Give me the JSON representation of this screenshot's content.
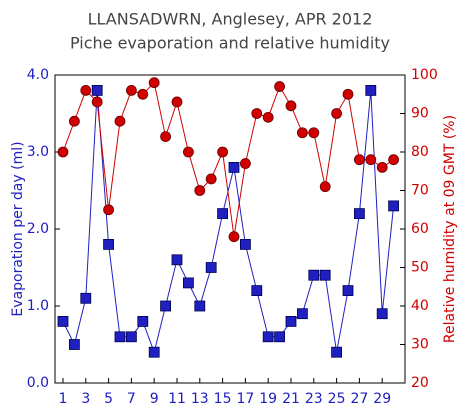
{
  "chart_data": {
    "type": "line",
    "title": "LLANSADWRN, Anglesey, APR 2012",
    "subtitle": "Piche evaporation and relative humidity",
    "ylabel": "Evaporation per day (ml)",
    "y2label": "Relative humidity at 09 GMT (%)",
    "x": [
      1,
      2,
      3,
      4,
      5,
      6,
      7,
      8,
      9,
      10,
      11,
      12,
      13,
      14,
      15,
      16,
      17,
      18,
      19,
      20,
      21,
      22,
      23,
      24,
      25,
      26,
      27,
      28,
      29,
      30
    ],
    "xlim": [
      0.3,
      31
    ],
    "xticks": [
      1,
      3,
      5,
      7,
      9,
      11,
      13,
      15,
      17,
      19,
      21,
      23,
      25,
      27,
      29
    ],
    "ylim": [
      0,
      4
    ],
    "yticks": [
      {
        "value": 0,
        "label": "0.0"
      },
      {
        "value": 1,
        "label": "1.0"
      },
      {
        "value": 2,
        "label": "2.0"
      },
      {
        "value": 3,
        "label": "3.0"
      },
      {
        "value": 4,
        "label": "4.0"
      }
    ],
    "y2lim": [
      20,
      100
    ],
    "y2ticks": [
      20,
      30,
      40,
      50,
      60,
      70,
      80,
      90,
      100
    ],
    "series": [
      {
        "color": "#2020c0",
        "marker": "square",
        "values": [
          0.8,
          0.5,
          1.1,
          3.8,
          1.8,
          0.6,
          0.6,
          0.8,
          0.4,
          1.0,
          1.6,
          1.3,
          1.0,
          1.5,
          2.2,
          2.8,
          1.8,
          1.2,
          0.6,
          0.6,
          0.8,
          0.9,
          1.4,
          1.4,
          0.4,
          1.2,
          2.2,
          3.8,
          0.9,
          2.3
        ]
      },
      {
        "color": "#d00000",
        "marker": "circle",
        "axis": "y2",
        "values": [
          80,
          88,
          96,
          93,
          65,
          88,
          96,
          95,
          98,
          84,
          93,
          80,
          70,
          73,
          80,
          58,
          77,
          90,
          89,
          97,
          92,
          85,
          85,
          71,
          90,
          95,
          78,
          78,
          76,
          78
        ]
      }
    ]
  }
}
